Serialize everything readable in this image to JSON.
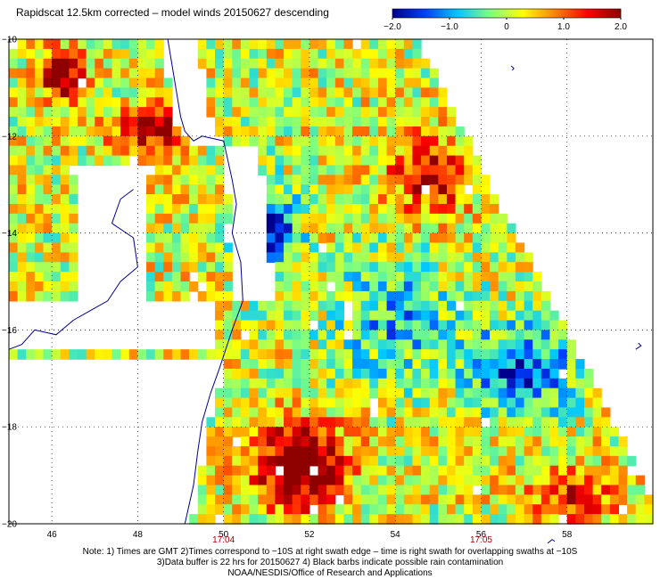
{
  "title": "Rapidscat 12.5km corrected – model winds 20150627 descending",
  "colorbar": {
    "ticks": [
      {
        "label": "−2.0",
        "value": -2.0
      },
      {
        "label": "−1.0",
        "value": -1.0
      },
      {
        "label": "0",
        "value": 0
      },
      {
        "label": "1.0",
        "value": 1.0
      },
      {
        "label": "2.0",
        "value": 2.0
      }
    ],
    "colors": [
      "#00008f",
      "#0040ff",
      "#00c8ff",
      "#7fff7f",
      "#ffff00",
      "#ff8000",
      "#ff0000",
      "#8f0000"
    ]
  },
  "map": {
    "lon_range": [
      45,
      60
    ],
    "lat_range": [
      -20,
      -10
    ],
    "lat_ticks": [
      {
        "label": "−10",
        "value": -10
      },
      {
        "label": "−12",
        "value": -12
      },
      {
        "label": "−14",
        "value": -14
      },
      {
        "label": "−16",
        "value": -16
      },
      {
        "label": "−18",
        "value": -18
      },
      {
        "label": "−20",
        "value": -20
      }
    ],
    "lon_ticks": [
      {
        "label": "46",
        "value": 46
      },
      {
        "label": "48",
        "value": 48
      },
      {
        "label": "50",
        "value": 50
      },
      {
        "label": "52",
        "value": 52
      },
      {
        "label": "54",
        "value": 54
      },
      {
        "label": "56",
        "value": 56
      },
      {
        "label": "58",
        "value": 58
      }
    ],
    "time_labels": [
      {
        "label": "17:04",
        "lon": 50
      },
      {
        "label": "17:05",
        "lon": 56
      }
    ],
    "colors": {
      "grid": "#000000",
      "coast": "#00008f",
      "time_label": "#b00000"
    }
  },
  "notes": [
    "Note: 1) Times are GMT 2)Times correspond to −10S at right swath edge – time is right swath for overlapping swaths at −10S",
    "3)Data buffer is 22 hrs for 20150627 4) Black barbs indicate possible rain contamination",
    "NOAA/NESDIS/Office of Research and Applications"
  ]
}
